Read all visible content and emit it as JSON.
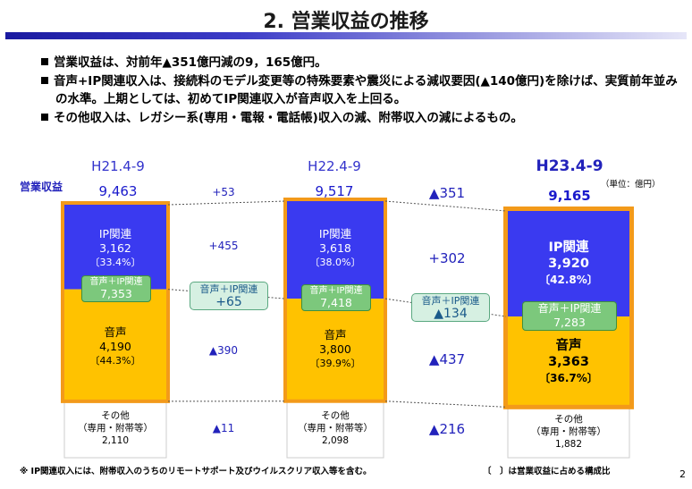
{
  "title": "2. 営業収益の推移",
  "bullets": [
    "営業収益は、対前年▲351億円減の9，165億円。",
    "音声+IP関連収入は、接続料のモデル変更等の特殊要素や震災による減収要因(▲140億円)を除けば、実質前年並みの水準。上期としては、初めてIP関連収入が音声収入を上回る。",
    "その他収入は、レガシー系(専用・電報・電話帳)収入の減、附帯収入の減によるもの。"
  ],
  "unit": "（単位：億円）",
  "footnote_left": "※ IP関連収入には、附帯収入のうちのリモートサポート及びウイルスクリア収入等を含む。",
  "footnote_right": "〔　〕は営業収益に占める構成比",
  "page_number": "2",
  "chart_data": {
    "type": "bar",
    "stacked": true,
    "ylabel": "営業収益",
    "categories": [
      "H21.4-9",
      "H22.4-9",
      "H23.4-9"
    ],
    "totals": [
      "9,463",
      "9,517",
      "9,165"
    ],
    "series": [
      {
        "name": "IP関連",
        "values": [
          3162,
          3618,
          3920
        ],
        "labels": [
          "3,162",
          "3,618",
          "3,920"
        ],
        "shares": [
          "〔33.4%〕",
          "〔38.0%〕",
          "〔42.8%〕"
        ],
        "color": "#3a3af0"
      },
      {
        "name": "音声",
        "values": [
          4190,
          3800,
          3363
        ],
        "labels": [
          "4,190",
          "3,800",
          "3,363"
        ],
        "shares": [
          "〔44.3%〕",
          "〔39.9%〕",
          "〔36.7%〕"
        ],
        "color": "#ffc200"
      },
      {
        "name": "その他（専用・附帯等）",
        "name_lines": [
          "その他",
          "（専用・附帯等）"
        ],
        "values": [
          2110,
          2098,
          1882
        ],
        "labels": [
          "2,110",
          "2,098",
          "1,882"
        ],
        "color": "#ffffff"
      }
    ],
    "subtotal": {
      "name": "音声＋IP関連",
      "values": [
        7353,
        7418,
        7283
      ],
      "labels": [
        "7,353",
        "7,418",
        "7,283"
      ]
    },
    "changes": [
      {
        "total": "+53",
        "ip": "+455",
        "voice_ip": "+65",
        "voice": "▲390",
        "other": "▲11"
      },
      {
        "total": "▲351",
        "ip": "+302",
        "voice_ip": "▲134",
        "voice": "▲437",
        "other": "▲216"
      }
    ],
    "colors": {
      "ip": "#3a3af0",
      "voice": "#ffc200",
      "highlight_border": "#f39a1a",
      "subtotal": "#7cc87c"
    }
  }
}
